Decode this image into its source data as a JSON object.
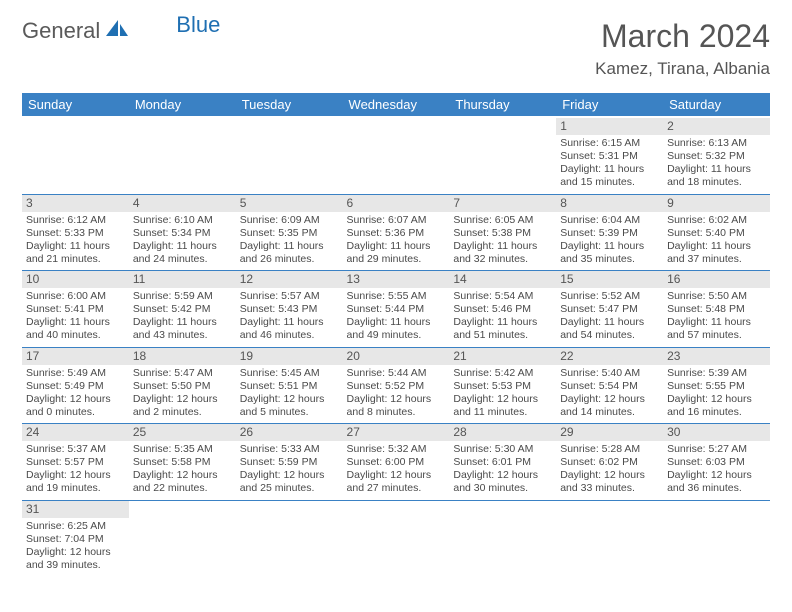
{
  "brand": {
    "word1": "General",
    "word2": "Blue"
  },
  "title": "March 2024",
  "location": "Kamez, Tirana, Albania",
  "colors": {
    "header_bg": "#3a81c4",
    "header_fg": "#ffffff",
    "daynum_bg": "#e7e7e7",
    "text": "#4a4a4a",
    "brand_blue": "#1f6fb2"
  },
  "weekdays": [
    "Sunday",
    "Monday",
    "Tuesday",
    "Wednesday",
    "Thursday",
    "Friday",
    "Saturday"
  ],
  "weeks": [
    [
      {
        "blank": true
      },
      {
        "blank": true
      },
      {
        "blank": true
      },
      {
        "blank": true
      },
      {
        "blank": true
      },
      {
        "n": "1",
        "sr": "Sunrise: 6:15 AM",
        "ss": "Sunset: 5:31 PM",
        "dl1": "Daylight: 11 hours",
        "dl2": "and 15 minutes."
      },
      {
        "n": "2",
        "sr": "Sunrise: 6:13 AM",
        "ss": "Sunset: 5:32 PM",
        "dl1": "Daylight: 11 hours",
        "dl2": "and 18 minutes."
      }
    ],
    [
      {
        "n": "3",
        "sr": "Sunrise: 6:12 AM",
        "ss": "Sunset: 5:33 PM",
        "dl1": "Daylight: 11 hours",
        "dl2": "and 21 minutes."
      },
      {
        "n": "4",
        "sr": "Sunrise: 6:10 AM",
        "ss": "Sunset: 5:34 PM",
        "dl1": "Daylight: 11 hours",
        "dl2": "and 24 minutes."
      },
      {
        "n": "5",
        "sr": "Sunrise: 6:09 AM",
        "ss": "Sunset: 5:35 PM",
        "dl1": "Daylight: 11 hours",
        "dl2": "and 26 minutes."
      },
      {
        "n": "6",
        "sr": "Sunrise: 6:07 AM",
        "ss": "Sunset: 5:36 PM",
        "dl1": "Daylight: 11 hours",
        "dl2": "and 29 minutes."
      },
      {
        "n": "7",
        "sr": "Sunrise: 6:05 AM",
        "ss": "Sunset: 5:38 PM",
        "dl1": "Daylight: 11 hours",
        "dl2": "and 32 minutes."
      },
      {
        "n": "8",
        "sr": "Sunrise: 6:04 AM",
        "ss": "Sunset: 5:39 PM",
        "dl1": "Daylight: 11 hours",
        "dl2": "and 35 minutes."
      },
      {
        "n": "9",
        "sr": "Sunrise: 6:02 AM",
        "ss": "Sunset: 5:40 PM",
        "dl1": "Daylight: 11 hours",
        "dl2": "and 37 minutes."
      }
    ],
    [
      {
        "n": "10",
        "sr": "Sunrise: 6:00 AM",
        "ss": "Sunset: 5:41 PM",
        "dl1": "Daylight: 11 hours",
        "dl2": "and 40 minutes."
      },
      {
        "n": "11",
        "sr": "Sunrise: 5:59 AM",
        "ss": "Sunset: 5:42 PM",
        "dl1": "Daylight: 11 hours",
        "dl2": "and 43 minutes."
      },
      {
        "n": "12",
        "sr": "Sunrise: 5:57 AM",
        "ss": "Sunset: 5:43 PM",
        "dl1": "Daylight: 11 hours",
        "dl2": "and 46 minutes."
      },
      {
        "n": "13",
        "sr": "Sunrise: 5:55 AM",
        "ss": "Sunset: 5:44 PM",
        "dl1": "Daylight: 11 hours",
        "dl2": "and 49 minutes."
      },
      {
        "n": "14",
        "sr": "Sunrise: 5:54 AM",
        "ss": "Sunset: 5:46 PM",
        "dl1": "Daylight: 11 hours",
        "dl2": "and 51 minutes."
      },
      {
        "n": "15",
        "sr": "Sunrise: 5:52 AM",
        "ss": "Sunset: 5:47 PM",
        "dl1": "Daylight: 11 hours",
        "dl2": "and 54 minutes."
      },
      {
        "n": "16",
        "sr": "Sunrise: 5:50 AM",
        "ss": "Sunset: 5:48 PM",
        "dl1": "Daylight: 11 hours",
        "dl2": "and 57 minutes."
      }
    ],
    [
      {
        "n": "17",
        "sr": "Sunrise: 5:49 AM",
        "ss": "Sunset: 5:49 PM",
        "dl1": "Daylight: 12 hours",
        "dl2": "and 0 minutes."
      },
      {
        "n": "18",
        "sr": "Sunrise: 5:47 AM",
        "ss": "Sunset: 5:50 PM",
        "dl1": "Daylight: 12 hours",
        "dl2": "and 2 minutes."
      },
      {
        "n": "19",
        "sr": "Sunrise: 5:45 AM",
        "ss": "Sunset: 5:51 PM",
        "dl1": "Daylight: 12 hours",
        "dl2": "and 5 minutes."
      },
      {
        "n": "20",
        "sr": "Sunrise: 5:44 AM",
        "ss": "Sunset: 5:52 PM",
        "dl1": "Daylight: 12 hours",
        "dl2": "and 8 minutes."
      },
      {
        "n": "21",
        "sr": "Sunrise: 5:42 AM",
        "ss": "Sunset: 5:53 PM",
        "dl1": "Daylight: 12 hours",
        "dl2": "and 11 minutes."
      },
      {
        "n": "22",
        "sr": "Sunrise: 5:40 AM",
        "ss": "Sunset: 5:54 PM",
        "dl1": "Daylight: 12 hours",
        "dl2": "and 14 minutes."
      },
      {
        "n": "23",
        "sr": "Sunrise: 5:39 AM",
        "ss": "Sunset: 5:55 PM",
        "dl1": "Daylight: 12 hours",
        "dl2": "and 16 minutes."
      }
    ],
    [
      {
        "n": "24",
        "sr": "Sunrise: 5:37 AM",
        "ss": "Sunset: 5:57 PM",
        "dl1": "Daylight: 12 hours",
        "dl2": "and 19 minutes."
      },
      {
        "n": "25",
        "sr": "Sunrise: 5:35 AM",
        "ss": "Sunset: 5:58 PM",
        "dl1": "Daylight: 12 hours",
        "dl2": "and 22 minutes."
      },
      {
        "n": "26",
        "sr": "Sunrise: 5:33 AM",
        "ss": "Sunset: 5:59 PM",
        "dl1": "Daylight: 12 hours",
        "dl2": "and 25 minutes."
      },
      {
        "n": "27",
        "sr": "Sunrise: 5:32 AM",
        "ss": "Sunset: 6:00 PM",
        "dl1": "Daylight: 12 hours",
        "dl2": "and 27 minutes."
      },
      {
        "n": "28",
        "sr": "Sunrise: 5:30 AM",
        "ss": "Sunset: 6:01 PM",
        "dl1": "Daylight: 12 hours",
        "dl2": "and 30 minutes."
      },
      {
        "n": "29",
        "sr": "Sunrise: 5:28 AM",
        "ss": "Sunset: 6:02 PM",
        "dl1": "Daylight: 12 hours",
        "dl2": "and 33 minutes."
      },
      {
        "n": "30",
        "sr": "Sunrise: 5:27 AM",
        "ss": "Sunset: 6:03 PM",
        "dl1": "Daylight: 12 hours",
        "dl2": "and 36 minutes."
      }
    ],
    [
      {
        "n": "31",
        "sr": "Sunrise: 6:25 AM",
        "ss": "Sunset: 7:04 PM",
        "dl1": "Daylight: 12 hours",
        "dl2": "and 39 minutes."
      },
      {
        "blank": true
      },
      {
        "blank": true
      },
      {
        "blank": true
      },
      {
        "blank": true
      },
      {
        "blank": true
      },
      {
        "blank": true
      }
    ]
  ]
}
